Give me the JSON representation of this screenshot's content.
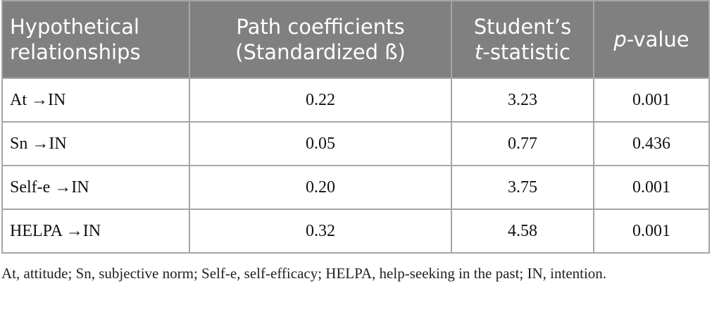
{
  "table": {
    "header": [
      {
        "lines": [
          "Hypothetical",
          "relationships"
        ]
      },
      {
        "lines": [
          "Path coefficients",
          "(Standardized ß)"
        ]
      },
      {
        "lines": [
          "Student’s"
        ],
        "italic": "t",
        "rest": "-statistic"
      },
      {
        "italic": "p",
        "rest": "-value"
      }
    ],
    "rows": [
      [
        "At →IN",
        "0.22",
        "3.23",
        "0.001"
      ],
      [
        "Sn →IN",
        "0.05",
        "0.77",
        "0.436"
      ],
      [
        "Self-e →IN",
        "0.20",
        "3.75",
        "0.001"
      ],
      [
        "HELPA →IN",
        "0.32",
        "4.58",
        "0.001"
      ]
    ]
  },
  "footnote": "At, attitude; Sn, subjective norm; Self-e, self-efficacy; HELPA, help-seeking in the past; IN, intention."
}
